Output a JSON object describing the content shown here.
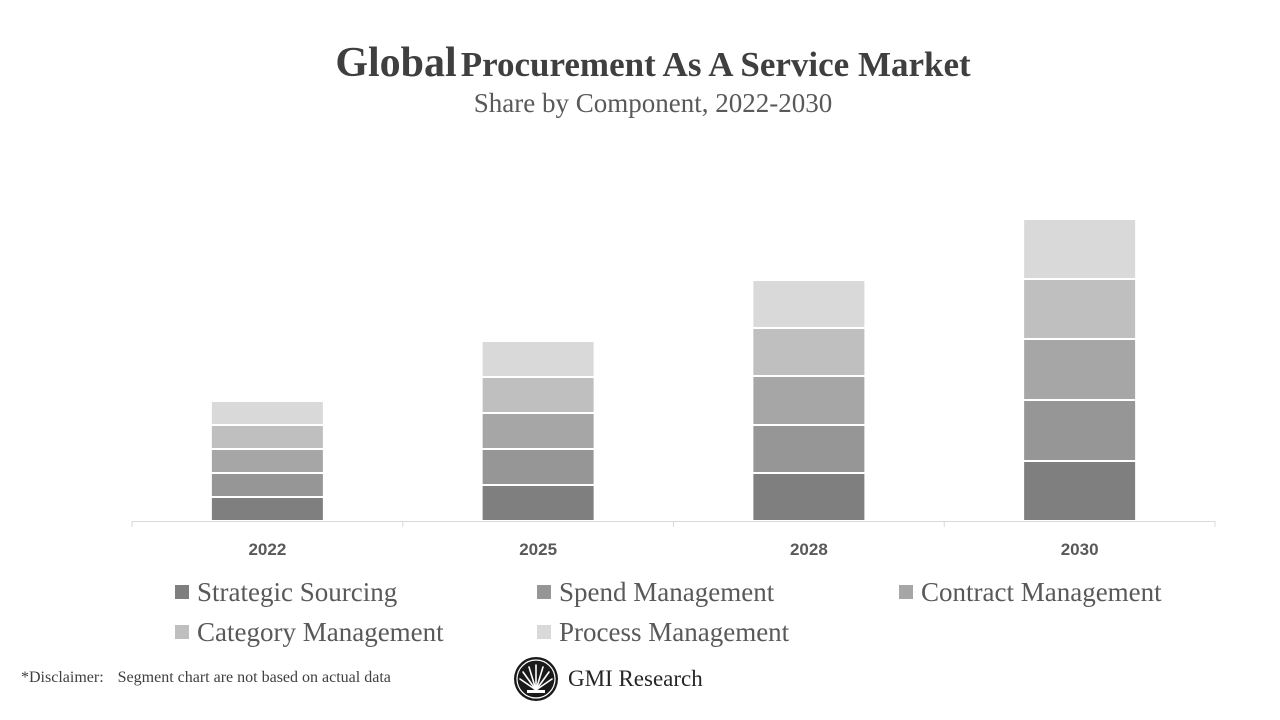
{
  "title": {
    "part1": "Global",
    "part2": "Procurement As A Service Market",
    "subtitle": "Share by Component, 2022-2030"
  },
  "colors": {
    "strategic_sourcing": "#7f7f7f",
    "spend_management": "#969696",
    "contract_management": "#a6a6a6",
    "category_management": "#bfbfbf",
    "process_management": "#d9d9d9",
    "axis": "#d9d9d9"
  },
  "chart_data": {
    "type": "bar",
    "stacked": true,
    "title": "Global Procurement As A Service Market",
    "subtitle": "Share by Component, 2022-2030",
    "categories": [
      "2022",
      "2025",
      "2028",
      "2030"
    ],
    "series": [
      {
        "name": "Strategic Sourcing",
        "values": [
          24,
          36,
          48,
          60
        ]
      },
      {
        "name": "Spend Management",
        "values": [
          24,
          36,
          48,
          61
        ]
      },
      {
        "name": "Contract Management",
        "values": [
          24,
          36,
          49,
          61
        ]
      },
      {
        "name": "Category Management",
        "values": [
          24,
          36,
          48,
          60
        ]
      },
      {
        "name": "Process Management",
        "values": [
          24,
          36,
          48,
          60
        ]
      }
    ],
    "xlabel": "",
    "ylabel": "",
    "ylim": [
      0,
      306
    ],
    "y_axis_visible": false,
    "grid": false,
    "legend_position": "bottom"
  },
  "legend": [
    {
      "label": "Strategic Sourcing"
    },
    {
      "label": "Spend Management"
    },
    {
      "label": "Contract Management"
    },
    {
      "label": "Category Management"
    },
    {
      "label": "Process Management"
    }
  ],
  "disclaimer": {
    "prefix": "*Disclaimer:",
    "text": "Segment chart are not based on actual data"
  },
  "brand": {
    "name": "GMI Research",
    "logo_icon": "gmi-sunburst-logo-icon"
  }
}
